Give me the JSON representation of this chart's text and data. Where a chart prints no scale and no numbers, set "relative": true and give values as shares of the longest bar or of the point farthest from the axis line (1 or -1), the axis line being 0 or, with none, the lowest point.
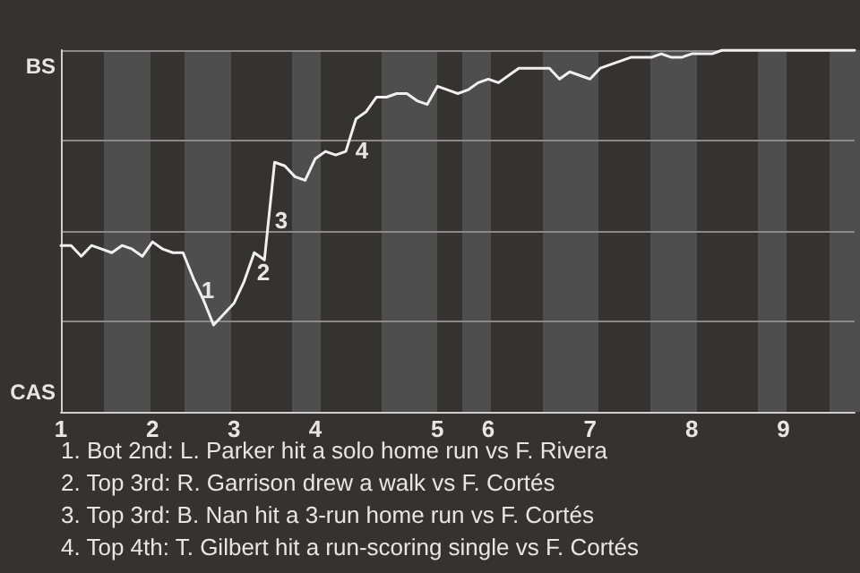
{
  "chart_data": {
    "type": "line",
    "relative": true,
    "categories": [
      "1",
      null,
      null,
      null,
      null,
      null,
      null,
      null,
      null,
      "2",
      null,
      null,
      null,
      null,
      null,
      null,
      null,
      "3",
      null,
      null,
      null,
      null,
      null,
      null,
      null,
      "4",
      null,
      null,
      null,
      null,
      null,
      null,
      null,
      null,
      null,
      null,
      null,
      "5",
      null,
      null,
      null,
      null,
      "6",
      null,
      null,
      null,
      null,
      null,
      null,
      null,
      null,
      null,
      "7",
      null,
      null,
      null,
      null,
      null,
      null,
      null,
      null,
      null,
      "8",
      null,
      null,
      null,
      null,
      null,
      null,
      null,
      null,
      "9",
      null,
      null,
      null,
      null,
      null,
      null,
      null
    ],
    "series": [
      {
        "color": "#f0f0f0",
        "values": [
          0.46,
          0.46,
          0.43,
          0.46,
          0.45,
          0.44,
          0.46,
          0.45,
          0.43,
          0.47,
          0.45,
          0.44,
          0.44,
          0.37,
          0.31,
          0.24,
          0.27,
          0.3,
          0.36,
          0.44,
          0.42,
          0.69,
          0.68,
          0.65,
          0.64,
          0.7,
          0.72,
          0.71,
          0.72,
          0.81,
          0.83,
          0.87,
          0.87,
          0.88,
          0.88,
          0.86,
          0.85,
          0.9,
          0.89,
          0.88,
          0.89,
          0.91,
          0.92,
          0.91,
          0.93,
          0.95,
          0.95,
          0.95,
          0.95,
          0.92,
          0.94,
          0.93,
          0.92,
          0.95,
          0.96,
          0.97,
          0.98,
          0.98,
          0.98,
          0.99,
          0.98,
          0.98,
          0.99,
          0.99,
          0.99,
          1,
          1,
          1,
          1,
          1,
          1,
          1,
          1,
          1,
          1,
          1,
          1,
          1,
          1
        ]
      }
    ],
    "grid": "y",
    "marker": "none",
    "line_style": "solid",
    "annotations": [
      "BS",
      "CAS",
      "1",
      "2",
      "3",
      "4",
      "1. Bot 2nd: L. Parker hit a solo home run vs F. Rivera",
      "2. Top 3rd: R. Garrison drew a walk vs F. Cortés",
      "3. Top 3rd: B. Nan hit a 3-run home run vs F. Cortés",
      "4. Top 4th: T. Gilbert hit a run-scoring single vs F. Cortés"
    ]
  }
}
